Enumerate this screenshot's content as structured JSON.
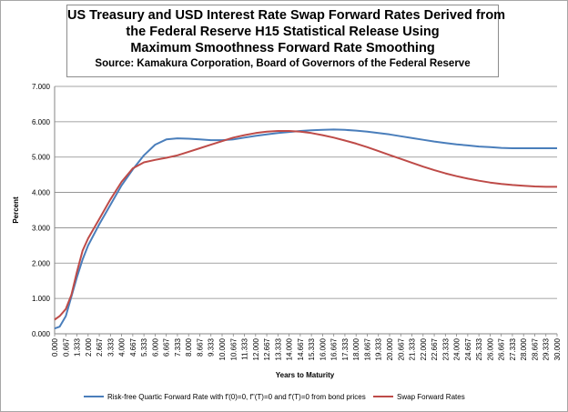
{
  "chart_data": {
    "type": "line",
    "title_lines": [
      "US Treasury and USD Interest Rate Swap Forward Rates Derived from",
      "the Federal Reserve H15 Statistical Release Using",
      "Maximum Smoothness Forward Rate Smoothing"
    ],
    "subtitle": "Source: Kamakura Corporation, Board of Governors of the Federal Reserve",
    "xlabel": "Years to Maturity",
    "ylabel": "Percent",
    "x_ticks": [
      "0.000",
      "0.667",
      "1.333",
      "2.000",
      "2.667",
      "3.333",
      "4.000",
      "4.667",
      "5.333",
      "6.000",
      "6.667",
      "7.333",
      "8.000",
      "8.667",
      "9.333",
      "10.000",
      "10.667",
      "11.333",
      "12.000",
      "12.667",
      "13.333",
      "14.000",
      "14.667",
      "15.333",
      "16.000",
      "16.667",
      "17.333",
      "18.000",
      "18.667",
      "19.333",
      "20.000",
      "20.667",
      "21.333",
      "22.000",
      "22.667",
      "23.333",
      "24.000",
      "24.667",
      "25.333",
      "26.000",
      "26.667",
      "27.333",
      "28.000",
      "28.667",
      "29.333",
      "30.000"
    ],
    "y_ticks": [
      "0.000",
      "1.000",
      "2.000",
      "3.000",
      "4.000",
      "5.000",
      "6.000",
      "7.000"
    ],
    "xlim": [
      0,
      30
    ],
    "ylim": [
      0,
      7
    ],
    "grid": "horizontal",
    "legend_position": "bottom",
    "series": [
      {
        "name": "Risk-free Quartic Forward Rate with f'(0)=0, f''(T)=0 and f'(T)=0 from bond prices",
        "color": "#4a7ebb",
        "points": [
          [
            0.0,
            0.15
          ],
          [
            0.3,
            0.2
          ],
          [
            0.667,
            0.5
          ],
          [
            1.0,
            1.05
          ],
          [
            1.333,
            1.6
          ],
          [
            1.667,
            2.1
          ],
          [
            2.0,
            2.5
          ],
          [
            2.667,
            3.1
          ],
          [
            3.333,
            3.65
          ],
          [
            4.0,
            4.2
          ],
          [
            4.667,
            4.65
          ],
          [
            5.333,
            5.05
          ],
          [
            6.0,
            5.35
          ],
          [
            6.667,
            5.5
          ],
          [
            7.333,
            5.53
          ],
          [
            8.0,
            5.52
          ],
          [
            8.667,
            5.5
          ],
          [
            9.333,
            5.48
          ],
          [
            10.0,
            5.48
          ],
          [
            10.667,
            5.5
          ],
          [
            11.333,
            5.55
          ],
          [
            12.0,
            5.6
          ],
          [
            12.667,
            5.64
          ],
          [
            13.333,
            5.68
          ],
          [
            14.0,
            5.71
          ],
          [
            14.667,
            5.74
          ],
          [
            15.333,
            5.76
          ],
          [
            16.0,
            5.77
          ],
          [
            16.667,
            5.78
          ],
          [
            17.333,
            5.77
          ],
          [
            18.0,
            5.75
          ],
          [
            18.667,
            5.72
          ],
          [
            19.333,
            5.68
          ],
          [
            20.0,
            5.64
          ],
          [
            20.667,
            5.59
          ],
          [
            21.333,
            5.54
          ],
          [
            22.0,
            5.49
          ],
          [
            22.667,
            5.44
          ],
          [
            23.333,
            5.4
          ],
          [
            24.0,
            5.36
          ],
          [
            24.667,
            5.33
          ],
          [
            25.333,
            5.3
          ],
          [
            26.0,
            5.28
          ],
          [
            26.667,
            5.26
          ],
          [
            27.333,
            5.25
          ],
          [
            28.0,
            5.25
          ],
          [
            28.667,
            5.25
          ],
          [
            29.333,
            5.25
          ],
          [
            30.0,
            5.25
          ]
        ]
      },
      {
        "name": "Swap Forward Rates",
        "color": "#be4b48",
        "points": [
          [
            0.0,
            0.4
          ],
          [
            0.3,
            0.5
          ],
          [
            0.667,
            0.7
          ],
          [
            1.0,
            1.1
          ],
          [
            1.333,
            1.75
          ],
          [
            1.667,
            2.35
          ],
          [
            2.0,
            2.7
          ],
          [
            2.667,
            3.25
          ],
          [
            3.333,
            3.8
          ],
          [
            4.0,
            4.3
          ],
          [
            4.667,
            4.68
          ],
          [
            5.333,
            4.85
          ],
          [
            6.0,
            4.92
          ],
          [
            6.667,
            4.98
          ],
          [
            7.333,
            5.05
          ],
          [
            8.0,
            5.15
          ],
          [
            8.667,
            5.25
          ],
          [
            9.333,
            5.35
          ],
          [
            10.0,
            5.45
          ],
          [
            10.667,
            5.55
          ],
          [
            11.333,
            5.62
          ],
          [
            12.0,
            5.68
          ],
          [
            12.667,
            5.72
          ],
          [
            13.333,
            5.74
          ],
          [
            14.0,
            5.74
          ],
          [
            14.667,
            5.72
          ],
          [
            15.333,
            5.68
          ],
          [
            16.0,
            5.62
          ],
          [
            16.667,
            5.55
          ],
          [
            17.333,
            5.47
          ],
          [
            18.0,
            5.38
          ],
          [
            18.667,
            5.28
          ],
          [
            19.333,
            5.17
          ],
          [
            20.0,
            5.06
          ],
          [
            20.667,
            4.95
          ],
          [
            21.333,
            4.84
          ],
          [
            22.0,
            4.73
          ],
          [
            22.667,
            4.63
          ],
          [
            23.333,
            4.54
          ],
          [
            24.0,
            4.46
          ],
          [
            24.667,
            4.39
          ],
          [
            25.333,
            4.33
          ],
          [
            26.0,
            4.28
          ],
          [
            26.667,
            4.24
          ],
          [
            27.333,
            4.21
          ],
          [
            28.0,
            4.19
          ],
          [
            28.667,
            4.17
          ],
          [
            29.333,
            4.16
          ],
          [
            30.0,
            4.16
          ]
        ]
      }
    ]
  }
}
